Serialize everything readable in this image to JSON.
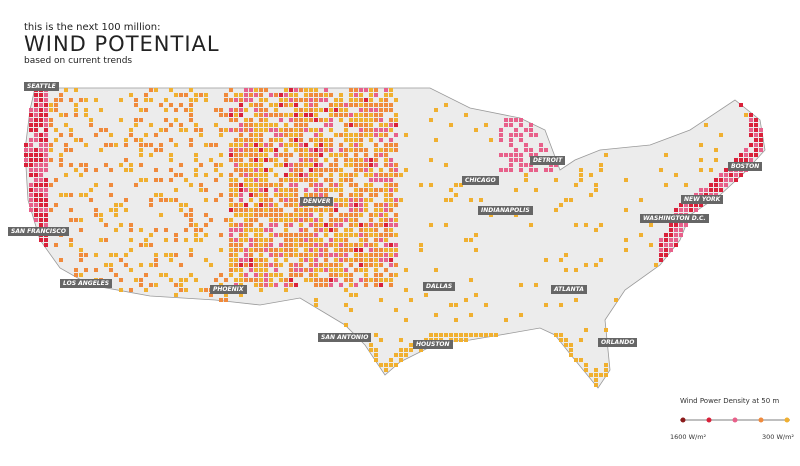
{
  "header": {
    "kicker": "this is the next 100 million:",
    "title": "WIND POTENTIAL",
    "subtitle": "based on current trends"
  },
  "cities": [
    "SEATTLE",
    "SAN FRANCISCO",
    "LOS ANGELES",
    "PHOENIX",
    "DENVER",
    "SAN ANTONIO",
    "DALLAS",
    "HOUSTON",
    "CHICAGO",
    "INDIANAPOLIS",
    "DETROIT",
    "ATLANTA",
    "ORLANDO",
    "WASHINGTON D.C.",
    "NEW YORK",
    "BOSTON"
  ],
  "legend": {
    "title": "Wind Power Density at 50 m",
    "colors": [
      "#8b1a1a",
      "#d9213a",
      "#e8608a",
      "#f08a3c",
      "#f0b030"
    ],
    "min_label": "1600 W/m²",
    "max_label": "300 W/m²"
  }
}
